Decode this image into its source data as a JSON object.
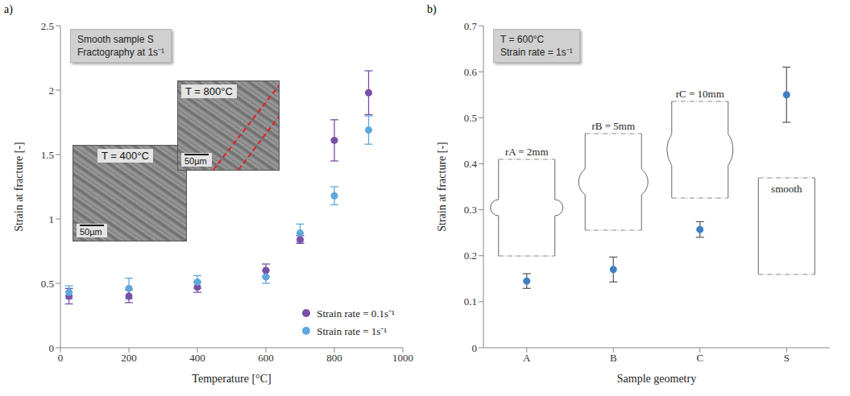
{
  "chart_data": [
    {
      "type": "scatter",
      "title": "a)",
      "x_label": "Temperature [°C]",
      "y_label": "Strain at fracture [-]",
      "annotations": [
        "Smooth sample S",
        "Fractography at 1s⁻¹"
      ],
      "insets": [
        {
          "text": "T = 400°C",
          "scale_bar": "50µm"
        },
        {
          "text": "T = 800°C",
          "scale_bar": "50µm"
        }
      ],
      "x": [
        25,
        200,
        400,
        600,
        700,
        800,
        900
      ],
      "series": [
        {
          "name": "Strain rate = 0.1s⁻¹",
          "color": "#7b4fa6",
          "marker": "circle",
          "values": [
            0.4,
            0.4,
            0.47,
            0.6,
            0.84,
            1.61,
            1.98
          ],
          "errors": [
            0.06,
            0.05,
            0.04,
            0.05,
            0.03,
            0.16,
            0.17
          ]
        },
        {
          "name": "Strain rate = 1s⁻¹",
          "color": "#5fa8dc",
          "marker": "circle",
          "values": [
            0.43,
            0.46,
            0.51,
            0.55,
            0.89,
            1.18,
            1.69
          ],
          "errors": [
            0.05,
            0.08,
            0.05,
            0.05,
            0.07,
            0.07,
            0.11
          ]
        }
      ],
      "xlim": [
        0,
        1000
      ],
      "xticks": [
        0,
        200,
        400,
        600,
        800,
        1000
      ],
      "ylim": [
        0,
        2.5
      ],
      "yticks": [
        0,
        0.5,
        1,
        1.5,
        2,
        2.5
      ],
      "legend": "lower right",
      "grid": false
    },
    {
      "type": "scatter",
      "title": "b)",
      "x_label": "Sample geometry",
      "y_label": "Strain at fracture [-]",
      "annotations": [
        "T = 600°C",
        "Strain rate = 1s⁻¹"
      ],
      "sketches": [
        "rA = 2mm",
        "rB = 5mm",
        "rC = 10mm",
        "smooth"
      ],
      "categories": [
        "A",
        "B",
        "C",
        "S"
      ],
      "values": [
        0.145,
        0.17,
        0.257,
        0.55
      ],
      "errors": [
        0.016,
        0.027,
        0.017,
        0.06
      ],
      "color": "#3f7fc4",
      "marker": "circle",
      "ylim": [
        0,
        0.7
      ],
      "yticks": [
        0,
        0.1,
        0.2,
        0.3,
        0.4,
        0.5,
        0.6,
        0.7
      ],
      "grid": false
    }
  ]
}
